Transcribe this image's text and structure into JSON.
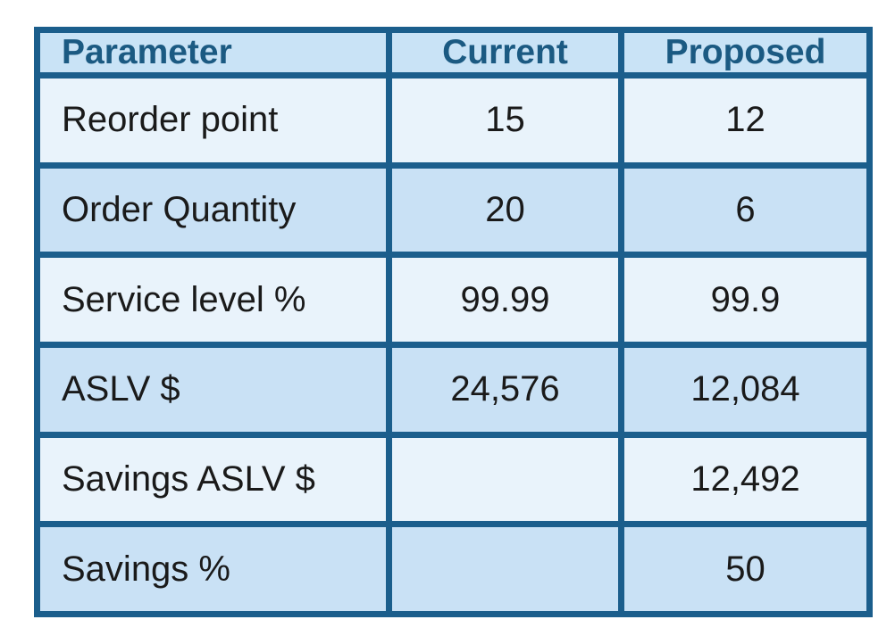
{
  "table": {
    "header": [
      "Parameter",
      "Current",
      "Proposed"
    ],
    "rows": [
      [
        "Reorder point",
        "15",
        "12"
      ],
      [
        "Order Quantity",
        "20",
        "6"
      ],
      [
        "Service level %",
        "99.99",
        "99.9"
      ],
      [
        "ASLV $",
        "24,576",
        "12,084"
      ],
      [
        "Savings ASLV $",
        null,
        "12,492"
      ],
      [
        "Savings %",
        null,
        "50"
      ]
    ]
  }
}
